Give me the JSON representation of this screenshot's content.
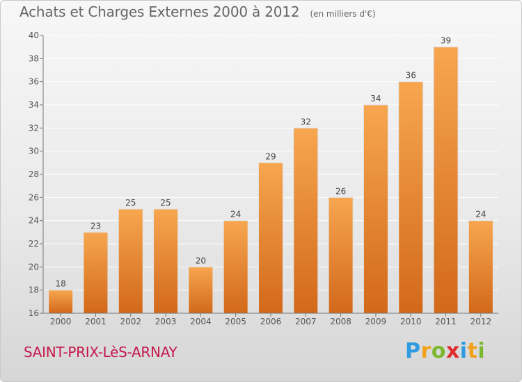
{
  "header": {
    "title": "Achats et Charges Externes 2000 à 2012",
    "unit": "(en milliers d'€)"
  },
  "footer": {
    "place": "SAINT-PRIX-LèS-ARNAY",
    "logo_letters": [
      {
        "char": "P",
        "color": "#2e9be0"
      },
      {
        "char": "r",
        "color": "#f3a11a"
      },
      {
        "char": "o",
        "color": "#7cb82f"
      },
      {
        "char": "x",
        "color": "#e12c2c"
      },
      {
        "char": "i",
        "color": "#2e9be0"
      },
      {
        "char": "t",
        "color": "#f3a11a"
      },
      {
        "char": "i",
        "color": "#7cb82f"
      }
    ]
  },
  "chart_data": {
    "type": "bar",
    "title": "Achats et Charges Externes 2000 à 2012",
    "subtitle": "(en milliers d'€)",
    "categories": [
      "2000",
      "2001",
      "2002",
      "2003",
      "2004",
      "2005",
      "2006",
      "2007",
      "2008",
      "2009",
      "2010",
      "2011",
      "2012"
    ],
    "values": [
      18,
      23,
      25,
      25,
      20,
      24,
      29,
      32,
      26,
      34,
      36,
      39,
      24
    ],
    "ylim": [
      16,
      40
    ],
    "yticks": [
      16,
      18,
      20,
      22,
      24,
      26,
      28,
      30,
      32,
      34,
      36,
      38,
      40
    ],
    "grid": true,
    "colors": {
      "bar_top": "#f7a64f",
      "bar_bottom": "#d2691a",
      "grid": "#ffffff",
      "axis": "#777777"
    }
  }
}
